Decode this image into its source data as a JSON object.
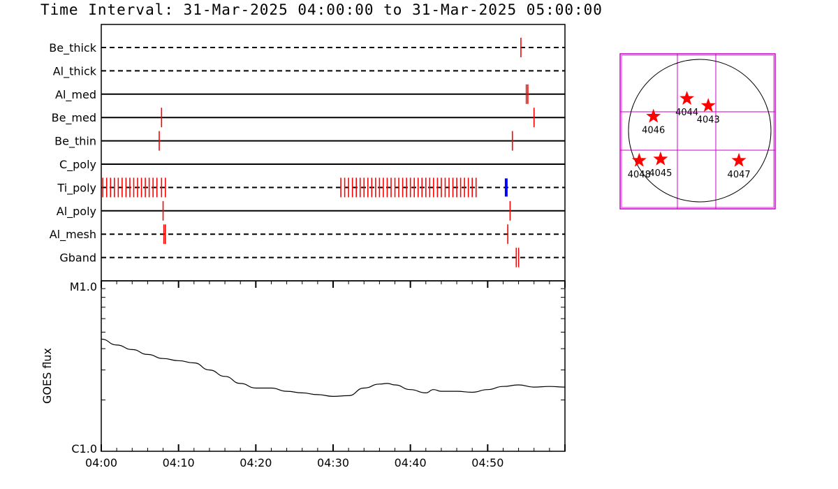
{
  "title": "Time Interval: 31-Mar-2025 04:00:00 to 31-Mar-2025 05:00:00",
  "chart_data": [
    {
      "type": "scatter",
      "name": "filter-timeline",
      "time_range_min": [
        0,
        60
      ],
      "rows": [
        {
          "label": "Be_thick",
          "style": "dashed",
          "marks": [
            54.3
          ]
        },
        {
          "label": "Al_thick",
          "style": "dashed",
          "marks": []
        },
        {
          "label": "Al_med",
          "style": "solid",
          "marks": [
            55.0,
            55.2
          ]
        },
        {
          "label": "Be_med",
          "style": "solid",
          "marks": [
            7.8,
            56.0
          ]
        },
        {
          "label": "Be_thin",
          "style": "solid",
          "marks": [
            7.5,
            53.2
          ]
        },
        {
          "label": "C_poly",
          "style": "solid",
          "marks": []
        },
        {
          "label": "Ti_poly",
          "style": "dashed",
          "marks": [
            0.2,
            0.7,
            1.2,
            1.7,
            2.2,
            2.7,
            3.2,
            3.7,
            4.2,
            4.7,
            5.2,
            5.7,
            6.2,
            6.7,
            7.2,
            7.8,
            8.3,
            31.0,
            31.5,
            32.0,
            32.5,
            33.0,
            33.5,
            34.0,
            34.5,
            35.0,
            35.5,
            36.0,
            36.5,
            37.0,
            37.5,
            38.0,
            38.5,
            39.0,
            39.5,
            40.0,
            40.5,
            41.0,
            41.5,
            42.0,
            42.5,
            43.0,
            43.5,
            44.0,
            44.5,
            45.0,
            45.5,
            46.0,
            46.5,
            47.0,
            47.5,
            48.0,
            48.5
          ],
          "highlight": [
            52.4
          ]
        },
        {
          "label": "Al_poly",
          "style": "solid",
          "marks": [
            8.0,
            52.9
          ]
        },
        {
          "label": "Al_mesh",
          "style": "dashed",
          "marks": [
            8.1,
            8.3,
            52.6
          ]
        },
        {
          "label": "Gband",
          "style": "dashed",
          "marks": [
            53.7,
            54.0
          ]
        }
      ],
      "colors": {
        "mark": "#ff0000",
        "highlight": "#0000ff",
        "axis": "#000000"
      }
    },
    {
      "type": "line",
      "name": "goes-flux",
      "ylabel": "GOES flux",
      "y_ticklabels": [
        "M1.0",
        "C1.0"
      ],
      "yscale": "log",
      "ylim": [
        1e-06,
        1e-05
      ],
      "x_ticklabels": [
        "04:00",
        "04:10",
        "04:20",
        "04:30",
        "04:40",
        "04:50"
      ],
      "xlim": [
        0,
        60
      ],
      "x": [
        0,
        2,
        4,
        6,
        8,
        10,
        12,
        14,
        16,
        18,
        20,
        22,
        24,
        26,
        28,
        30,
        32,
        34,
        36,
        37,
        38,
        40,
        42,
        43,
        44,
        46,
        48,
        50,
        52,
        54,
        56,
        58,
        60
      ],
      "y": [
        4.55e-06,
        4.2e-06,
        3.95e-06,
        3.7e-06,
        3.5e-06,
        3.4e-06,
        3.3e-06,
        3e-06,
        2.75e-06,
        2.5e-06,
        2.35e-06,
        2.35e-06,
        2.25e-06,
        2.2e-06,
        2.15e-06,
        2.1e-06,
        2.12e-06,
        2.35e-06,
        2.48e-06,
        2.5e-06,
        2.45e-06,
        2.3e-06,
        2.2e-06,
        2.3e-06,
        2.25e-06,
        2.25e-06,
        2.22e-06,
        2.3e-06,
        2.4e-06,
        2.45e-06,
        2.38e-06,
        2.4e-06,
        2.38e-06
      ],
      "color": "#000000"
    },
    {
      "type": "scatter",
      "name": "active-regions-map",
      "regions": [
        {
          "label": "4044",
          "x": -0.18,
          "y": 0.45
        },
        {
          "label": "4043",
          "x": 0.12,
          "y": 0.35
        },
        {
          "label": "4046",
          "x": -0.65,
          "y": 0.2
        },
        {
          "label": "4045",
          "x": -0.55,
          "y": -0.4
        },
        {
          "label": "4048",
          "x": -0.85,
          "y": -0.42
        },
        {
          "label": "4047",
          "x": 0.55,
          "y": -0.42
        }
      ],
      "colors": {
        "grid": "#cc00cc",
        "star": "#ff0000",
        "disk": "#000000"
      }
    }
  ]
}
